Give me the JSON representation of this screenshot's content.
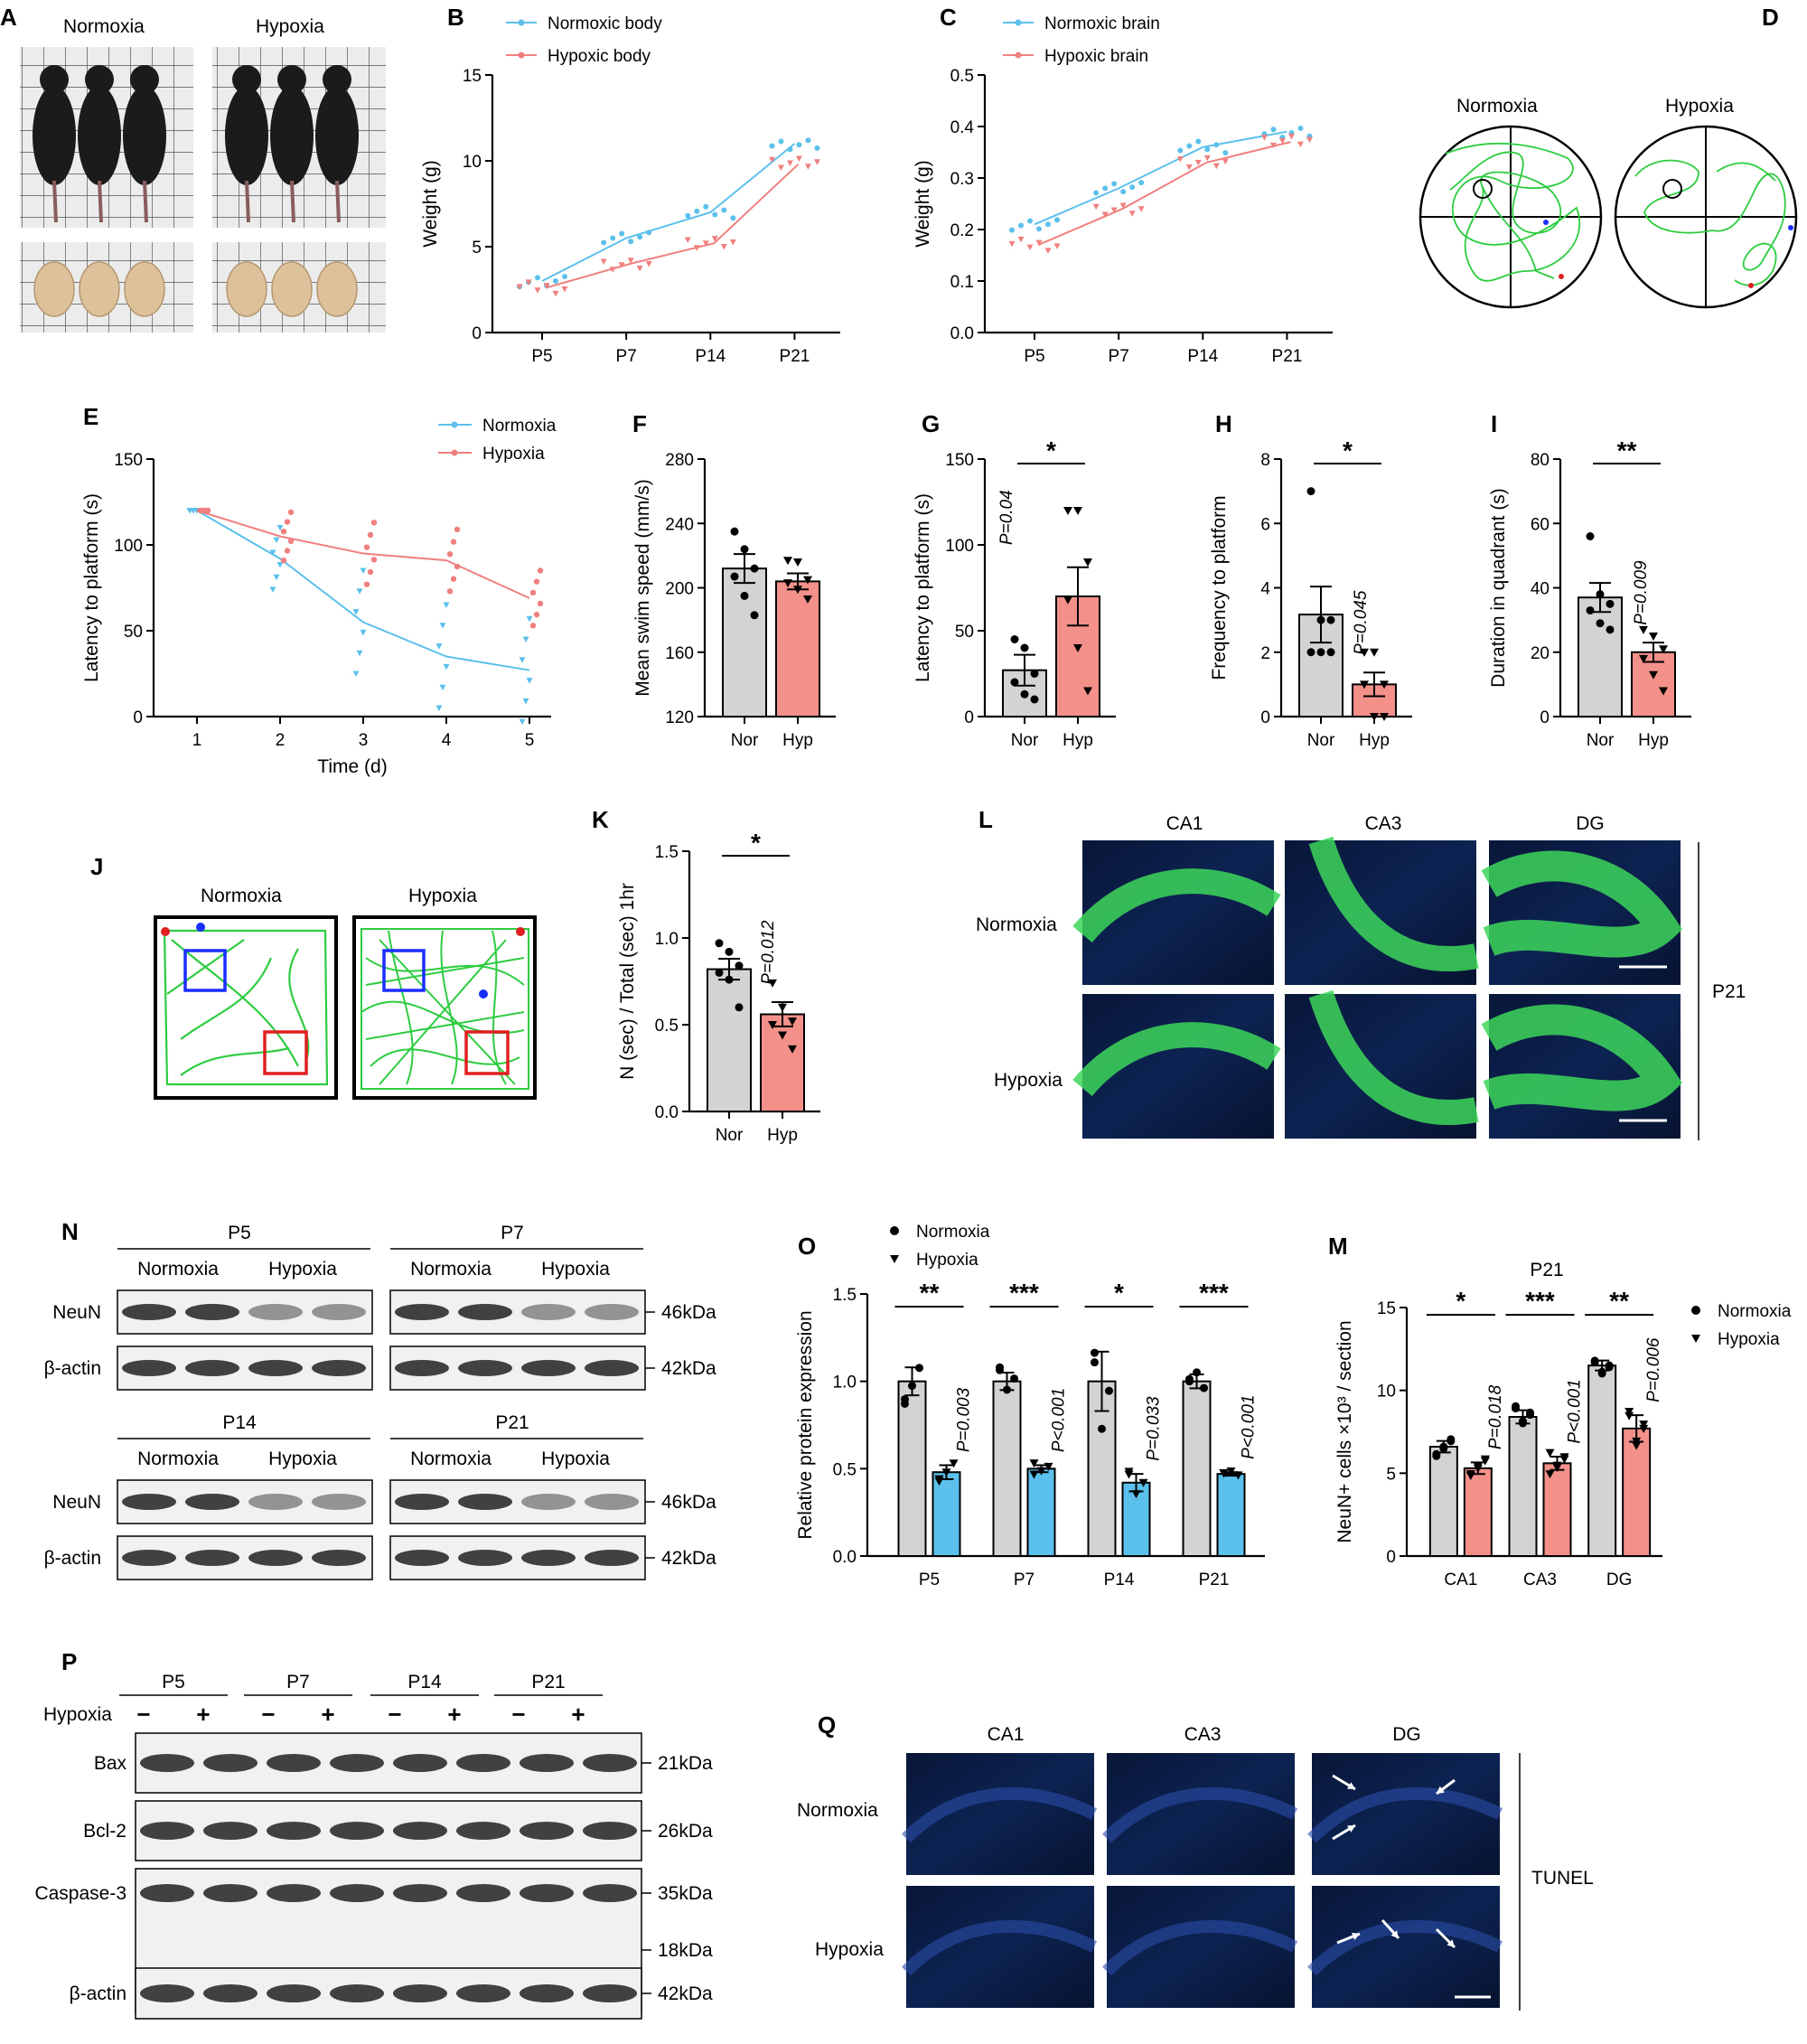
{
  "panels": {
    "A": {
      "letter": "A",
      "label_left": "Normoxia",
      "label_right": "Hypoxia"
    },
    "B": {
      "letter": "B"
    },
    "C": {
      "letter": "C"
    },
    "D": {
      "letter": "D",
      "label_left": "Normoxia",
      "label_right": "Hypoxia"
    },
    "E": {
      "letter": "E"
    },
    "F": {
      "letter": "F"
    },
    "G": {
      "letter": "G"
    },
    "H": {
      "letter": "H"
    },
    "I": {
      "letter": "I"
    },
    "J": {
      "letter": "J",
      "label_left": "Normoxia",
      "label_right": "Hypoxia"
    },
    "K": {
      "letter": "K"
    },
    "L": {
      "letter": "L",
      "cols": [
        "CA1",
        "CA3",
        "DG"
      ],
      "rows": [
        "Normoxia",
        "Hypoxia"
      ],
      "side": "P21"
    },
    "M": {
      "letter": "M"
    },
    "N": {
      "letter": "N",
      "blocks": [
        {
          "age": "P5",
          "g1": "Normoxia",
          "g2": "Hypoxia"
        },
        {
          "age": "P7",
          "g1": "Normoxia",
          "g2": "Hypoxia"
        },
        {
          "age": "P14",
          "g1": "Normoxia",
          "g2": "Hypoxia"
        },
        {
          "age": "P21",
          "g1": "Normoxia",
          "g2": "Hypoxia"
        }
      ],
      "proteins": [
        "NeuN",
        "β-actin"
      ],
      "sizes": [
        "46kDa",
        "42kDa"
      ]
    },
    "O": {
      "letter": "O"
    },
    "P": {
      "letter": "P",
      "ages": [
        "P5",
        "P7",
        "P14",
        "P21"
      ],
      "row_label": "Hypoxia",
      "minus": "−",
      "plus": "+",
      "proteins": [
        "Bax",
        "Bcl-2",
        "Caspase-3",
        "β-actin"
      ],
      "sizes": [
        "21kDa",
        "26kDa",
        "35kDa",
        "18kDa",
        "42kDa"
      ]
    },
    "Q": {
      "letter": "Q",
      "cols": [
        "CA1",
        "CA3",
        "DG"
      ],
      "rows": [
        "Normoxia",
        "Hypoxia"
      ],
      "side": "TUNEL"
    }
  },
  "chart_data": [
    {
      "id": "B",
      "type": "line",
      "ylabel": "Weight (g)",
      "categories": [
        "P5",
        "P7",
        "P14",
        "P21"
      ],
      "ylim": [
        0,
        15
      ],
      "yticks": [
        0,
        5,
        10,
        15
      ],
      "legend_position": "top-left",
      "series": [
        {
          "name": "Normoxic body",
          "color": "#5bc0eb",
          "means": [
            3.0,
            5.5,
            7.0,
            11.0
          ]
        },
        {
          "name": "Hypoxic body",
          "color": "#f07f7f",
          "means": [
            2.6,
            4.0,
            5.2,
            9.8
          ]
        }
      ]
    },
    {
      "id": "C",
      "type": "line",
      "ylabel": "Weight (g)",
      "categories": [
        "P5",
        "P7",
        "P14",
        "P21"
      ],
      "ylim": [
        0,
        0.5
      ],
      "yticks": [
        0.0,
        0.1,
        0.2,
        0.3,
        0.4,
        0.5
      ],
      "legend_position": "top-left",
      "series": [
        {
          "name": "Normoxic brain",
          "color": "#5bc0eb",
          "means": [
            0.21,
            0.28,
            0.36,
            0.39
          ]
        },
        {
          "name": "Hypoxic brain",
          "color": "#f07f7f",
          "means": [
            0.17,
            0.24,
            0.33,
            0.37
          ]
        }
      ]
    },
    {
      "id": "E",
      "type": "line",
      "ylabel": "Latency to platform (s)",
      "xlabel": "Time (d)",
      "x": [
        1,
        2,
        3,
        4,
        5
      ],
      "ylim": [
        0,
        150
      ],
      "yticks": [
        0,
        50,
        100,
        150
      ],
      "legend_position": "top-right",
      "series": [
        {
          "name": "Normoxia",
          "color": "#5bc0eb",
          "means": [
            120,
            92,
            55,
            35,
            27
          ]
        },
        {
          "name": "Hypoxia",
          "color": "#f07f7f",
          "means": [
            120,
            105,
            95,
            91,
            69
          ]
        }
      ]
    },
    {
      "id": "F",
      "type": "bar",
      "ylabel": "Mean swim speed (mm/s)",
      "categories": [
        "Nor",
        "Hyp"
      ],
      "ylim": [
        120,
        280
      ],
      "yticks": [
        120,
        160,
        200,
        240,
        280
      ],
      "values": [
        212,
        204
      ],
      "errors": [
        9,
        5
      ],
      "points": [
        [
          235,
          224,
          212,
          207,
          195,
          183
        ],
        [
          217,
          216,
          205,
          203,
          199,
          193
        ]
      ]
    },
    {
      "id": "G",
      "type": "bar",
      "ylabel": "Latency to platform (s)",
      "categories": [
        "Nor",
        "Hyp"
      ],
      "ylim": [
        0,
        150
      ],
      "yticks": [
        0,
        50,
        100,
        150
      ],
      "values": [
        27,
        70
      ],
      "errors": [
        9,
        17
      ],
      "significance": "*",
      "pvalue": "P=0.04",
      "points": [
        [
          45,
          40,
          25,
          20,
          13,
          10
        ],
        [
          120,
          120,
          90,
          68,
          40,
          15
        ]
      ]
    },
    {
      "id": "H",
      "type": "bar",
      "ylabel": "Frequency to platform",
      "categories": [
        "Nor",
        "Hyp"
      ],
      "ylim": [
        0,
        8
      ],
      "yticks": [
        0,
        2,
        4,
        6,
        8
      ],
      "values": [
        3.17,
        1.0
      ],
      "errors": [
        0.87,
        0.37
      ],
      "significance": "*",
      "pvalue": "P=0.045",
      "points": [
        [
          7,
          3,
          3,
          2,
          2,
          2
        ],
        [
          2,
          2,
          1,
          1,
          0,
          0
        ]
      ]
    },
    {
      "id": "I",
      "type": "bar",
      "ylabel": "Duration in quadrant (s)",
      "categories": [
        "Nor",
        "Hyp"
      ],
      "ylim": [
        0,
        80
      ],
      "yticks": [
        0,
        20,
        40,
        60,
        80
      ],
      "values": [
        37,
        20
      ],
      "errors": [
        4.5,
        3
      ],
      "significance": "**",
      "pvalue": "P=0.009",
      "points": [
        [
          56,
          38,
          35,
          33,
          29,
          27
        ],
        [
          27,
          25,
          21,
          18,
          13,
          8
        ]
      ]
    },
    {
      "id": "K",
      "type": "bar",
      "ylabel": "N (sec) / Total (sec) 1hr",
      "categories": [
        "Nor",
        "Hyp"
      ],
      "ylim": [
        0,
        1.5
      ],
      "yticks": [
        0.0,
        0.5,
        1.0,
        1.5
      ],
      "values": [
        0.82,
        0.56
      ],
      "errors": [
        0.06,
        0.07
      ],
      "significance": "*",
      "pvalue": "P=0.012",
      "points": [
        [
          0.97,
          0.92,
          0.84,
          0.8,
          0.76,
          0.6
        ],
        [
          0.74,
          0.6,
          0.52,
          0.5,
          0.44,
          0.36
        ]
      ]
    },
    {
      "id": "O",
      "type": "bar",
      "ylabel": "Relative protein expression",
      "categories": [
        "P5",
        "P7",
        "P14",
        "P21"
      ],
      "ylim": [
        0,
        1.5
      ],
      "yticks": [
        0.0,
        0.5,
        1.0,
        1.5
      ],
      "legend_position": "top-left",
      "series": [
        {
          "name": "Normoxia",
          "color": "#d3d3d3",
          "values": [
            1.0,
            1.0,
            1.0,
            1.0
          ],
          "errors": [
            0.08,
            0.05,
            0.17,
            0.04
          ]
        },
        {
          "name": "Hypoxia",
          "color": "#5bc0eb",
          "values": [
            0.48,
            0.5,
            0.42,
            0.47
          ],
          "errors": [
            0.04,
            0.02,
            0.05,
            0.01
          ]
        }
      ],
      "significance": [
        "**",
        "***",
        "*",
        "***"
      ],
      "pvalues": [
        "P=0.003",
        "P<0.001",
        "P=0.033",
        "P<0.001"
      ]
    },
    {
      "id": "M",
      "type": "bar",
      "title": "P21",
      "ylabel": "NeuN+ cells ×10³ / section",
      "categories": [
        "CA1",
        "CA3",
        "DG"
      ],
      "ylim": [
        0,
        15
      ],
      "yticks": [
        0,
        5,
        10,
        15
      ],
      "legend_position": "right",
      "series": [
        {
          "name": "Normoxia",
          "color": "#d3d3d3",
          "values": [
            6.6,
            8.4,
            11.5
          ],
          "errors": [
            0.35,
            0.4,
            0.3
          ]
        },
        {
          "name": "Hypoxia",
          "color": "#f4908a",
          "values": [
            5.3,
            5.6,
            7.7
          ],
          "errors": [
            0.35,
            0.4,
            0.8
          ]
        }
      ],
      "significance": [
        "*",
        "***",
        "**"
      ],
      "pvalues": [
        "P=0.018",
        "P<0.001",
        "P=0.006"
      ]
    }
  ]
}
